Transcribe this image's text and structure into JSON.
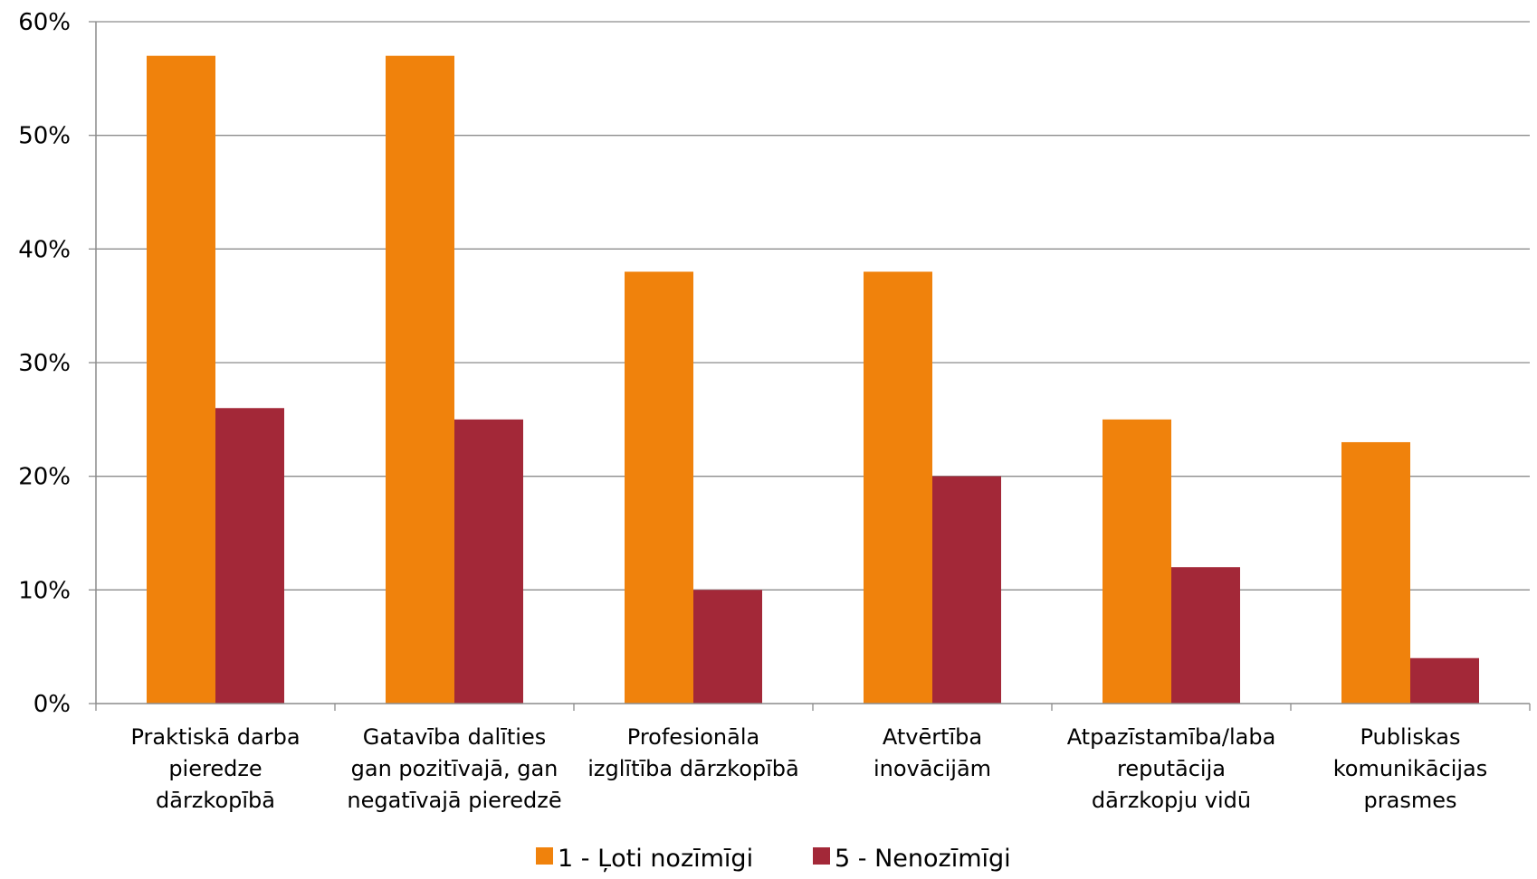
{
  "chart_data": {
    "type": "bar",
    "title": "",
    "xlabel": "",
    "ylabel": "",
    "ylim": [
      0,
      60
    ],
    "y_ticks": [
      "0%",
      "10%",
      "20%",
      "30%",
      "40%",
      "50%",
      "60%"
    ],
    "grid": true,
    "legend_position": "bottom",
    "categories": [
      [
        "Praktiskā darba",
        "pieredze",
        "dārzkopībā"
      ],
      [
        "Gatavība dalīties",
        "gan pozitīvajā, gan",
        "negatīvajā pieredzē"
      ],
      [
        "Profesionāla",
        "izglītība dārzkopībā"
      ],
      [
        "Atvērtība",
        "inovācijām"
      ],
      [
        "Atpazīstamība/laba",
        "reputācija",
        "dārzkopju vidū"
      ],
      [
        "Publiskas",
        "komunikācijas",
        "prasmes"
      ]
    ],
    "series": [
      {
        "name": "1 - Ļoti nozīmīgi",
        "color": "#f0820c",
        "values": [
          57,
          57,
          38,
          38,
          25,
          23
        ]
      },
      {
        "name": "5 - Nenozīmīgi",
        "color": "#a32838",
        "values": [
          26,
          25,
          10,
          20,
          12,
          4
        ]
      }
    ]
  }
}
